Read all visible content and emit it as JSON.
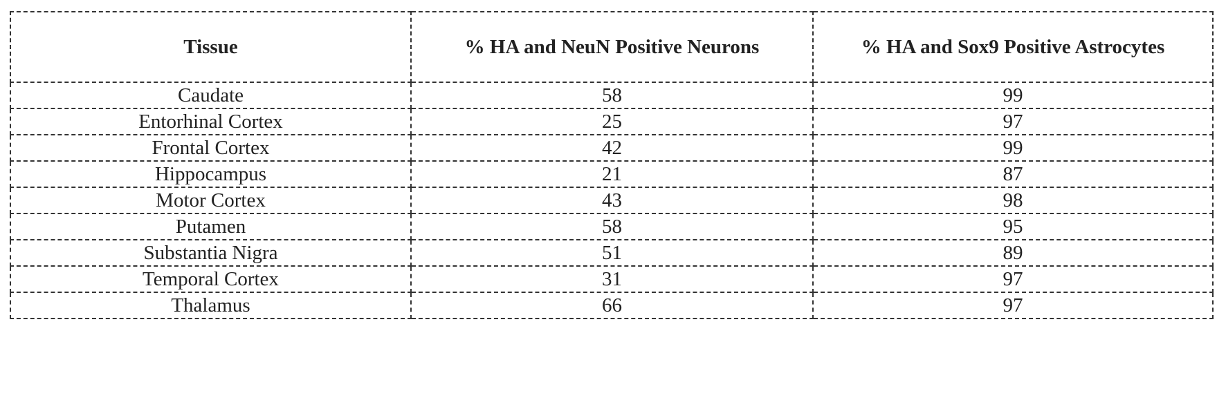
{
  "table": {
    "headers": [
      "Tissue",
      "% HA and NeuN Positive Neurons",
      "% HA and Sox9 Positive Astrocytes"
    ],
    "rows": [
      [
        "Caudate",
        "58",
        "99"
      ],
      [
        "Entorhinal Cortex",
        "25",
        "97"
      ],
      [
        "Frontal Cortex",
        "42",
        "99"
      ],
      [
        "Hippocampus",
        "21",
        "87"
      ],
      [
        "Motor Cortex",
        "43",
        "98"
      ],
      [
        "Putamen",
        "58",
        "95"
      ],
      [
        "Substantia Nigra",
        "51",
        "89"
      ],
      [
        "Temporal Cortex",
        "31",
        "97"
      ],
      [
        "Thalamus",
        "66",
        "97"
      ]
    ]
  }
}
